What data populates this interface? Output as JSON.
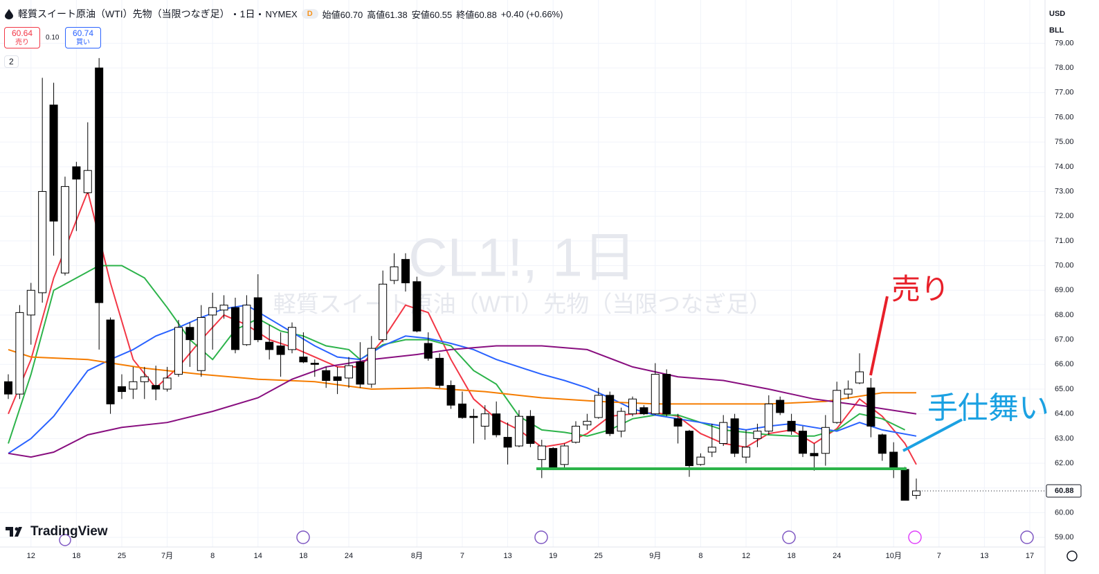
{
  "header": {
    "title": "軽質スイート原油（WTI）先物（当限つなぎ足）",
    "interval": "1日",
    "exchange": "NYMEX",
    "badge": "D",
    "ohlc": [
      "始値60.70",
      "高値61.38",
      "安値60.55",
      "終値60.88"
    ],
    "change": "+0.40 (+0.66%)"
  },
  "order_panel": {
    "sell_price": "60.64",
    "sell_label": "売り",
    "spread": "0.10",
    "buy_price": "60.74",
    "buy_label": "買い"
  },
  "indicator_count": "2",
  "currency": "USD",
  "unit": "BLL",
  "logo_text": "TradingView",
  "chart_data": {
    "type": "candlestick",
    "watermark_title": "CL1!, 1日",
    "watermark_subtitle": "軽質スイート原油（WTI）先物（当限つなぎ足）",
    "x": [
      0,
      1,
      2,
      3,
      4,
      5,
      6,
      7,
      8,
      9,
      10,
      11,
      12,
      13,
      14,
      15,
      16,
      17,
      18,
      19,
      20,
      21,
      22,
      23,
      24,
      25,
      26,
      27,
      28,
      29,
      30,
      31,
      32,
      33,
      34,
      35,
      36,
      37,
      38,
      39,
      40,
      41,
      42,
      43,
      44,
      45,
      46,
      47,
      48,
      49,
      50,
      51,
      52,
      53,
      54,
      55,
      56,
      57,
      58,
      59,
      60,
      61,
      62,
      63,
      64,
      65,
      66,
      67,
      68,
      69,
      70,
      71,
      72,
      73,
      74,
      75,
      76,
      77,
      78,
      79,
      80
    ],
    "open": [
      65.3,
      64.8,
      68.0,
      68.9,
      76.5,
      69.7,
      74.0,
      72.95,
      78.0,
      67.8,
      65.1,
      65.0,
      65.3,
      65.15,
      65.0,
      65.6,
      67.5,
      65.75,
      68.0,
      68.2,
      68.3,
      66.8,
      68.7,
      66.9,
      66.75,
      66.6,
      66.3,
      66.05,
      65.75,
      65.5,
      65.45,
      66.1,
      65.2,
      67.0,
      69.4,
      70.25,
      69.35,
      66.85,
      66.25,
      65.15,
      64.4,
      63.9,
      63.5,
      64.0,
      63.05,
      62.7,
      63.9,
      62.15,
      62.6,
      61.95,
      62.85,
      63.55,
      63.85,
      64.75,
      63.3,
      64.0,
      64.25,
      64.0,
      65.6,
      63.8,
      63.3,
      61.95,
      62.45,
      62.8,
      63.8,
      62.25,
      63.0,
      63.3,
      64.55,
      63.7,
      63.3,
      62.4,
      62.4,
      63.65,
      64.8,
      65.25,
      65.05,
      63.15,
      62.45,
      61.75,
      60.7
    ],
    "high": [
      65.6,
      68.4,
      69.3,
      77.6,
      77.4,
      73.6,
      74.2,
      75.8,
      78.4,
      67.9,
      65.6,
      65.9,
      65.9,
      65.95,
      65.9,
      67.8,
      67.7,
      68.4,
      68.9,
      68.8,
      68.7,
      68.8,
      69.65,
      67.6,
      67.3,
      67.7,
      67.3,
      66.2,
      65.9,
      65.9,
      66.3,
      66.9,
      67.15,
      69.8,
      70.5,
      70.5,
      69.55,
      67.3,
      66.45,
      65.35,
      64.9,
      64.2,
      64.35,
      64.5,
      63.65,
      64.15,
      64.15,
      62.95,
      62.65,
      62.8,
      63.7,
      64.0,
      65.05,
      64.9,
      64.25,
      64.7,
      64.35,
      66.05,
      65.8,
      64.0,
      63.35,
      62.4,
      63.6,
      63.95,
      64.0,
      63.35,
      63.6,
      64.75,
      64.7,
      64.0,
      63.5,
      62.8,
      63.95,
      65.3,
      65.35,
      66.45,
      65.45,
      63.2,
      62.85,
      61.85,
      61.38
    ],
    "low": [
      64.6,
      64.6,
      66.8,
      68.5,
      70.4,
      69.6,
      71.4,
      72.9,
      66.6,
      64.0,
      64.6,
      64.6,
      64.6,
      64.55,
      64.9,
      65.5,
      65.9,
      65.5,
      66.6,
      67.85,
      66.45,
      66.75,
      66.9,
      66.2,
      65.5,
      66.45,
      66.05,
      65.5,
      65.05,
      64.8,
      65.05,
      65.05,
      65.05,
      66.9,
      69.25,
      68.95,
      67.3,
      66.15,
      65.05,
      64.2,
      63.8,
      62.8,
      62.95,
      63.05,
      61.95,
      62.65,
      62.65,
      61.4,
      61.75,
      61.8,
      62.8,
      63.35,
      63.8,
      63.1,
      63.05,
      63.9,
      63.95,
      63.95,
      63.9,
      62.8,
      61.45,
      61.9,
      62.25,
      62.7,
      62.25,
      62.0,
      62.65,
      63.15,
      63.95,
      63.15,
      62.25,
      61.7,
      61.9,
      63.6,
      64.6,
      65.2,
      63.05,
      62.1,
      61.4,
      60.5,
      60.55
    ],
    "close": [
      64.8,
      68.1,
      69.0,
      73.0,
      71.8,
      73.2,
      73.5,
      73.85,
      68.5,
      64.4,
      64.9,
      65.3,
      65.5,
      65.0,
      65.45,
      67.5,
      67.0,
      67.9,
      68.3,
      68.4,
      66.6,
      68.4,
      67.0,
      66.6,
      66.4,
      67.5,
      66.1,
      66.0,
      65.35,
      65.35,
      65.95,
      65.2,
      66.65,
      69.25,
      69.95,
      69.3,
      67.35,
      66.25,
      65.15,
      64.35,
      63.85,
      63.85,
      64.0,
      63.15,
      62.65,
      63.9,
      62.8,
      62.7,
      61.8,
      62.7,
      63.5,
      63.7,
      64.75,
      63.2,
      64.1,
      64.6,
      64.0,
      65.6,
      64.0,
      63.5,
      61.9,
      62.25,
      62.65,
      63.65,
      62.4,
      62.65,
      63.3,
      64.4,
      64.05,
      63.3,
      62.4,
      62.3,
      63.45,
      64.95,
      65.0,
      65.7,
      63.5,
      62.4,
      61.8,
      60.5,
      60.88
    ],
    "up_color": "#ffffff",
    "down_color": "#000000",
    "xlim": [
      -0.73,
      91.34
    ],
    "xticks": [
      {
        "value": 2,
        "label": "12"
      },
      {
        "value": 6,
        "label": "18"
      },
      {
        "value": 10,
        "label": "25"
      },
      {
        "value": 14,
        "label": "7月"
      },
      {
        "value": 18,
        "label": "8"
      },
      {
        "value": 22,
        "label": "14"
      },
      {
        "value": 26,
        "label": "18"
      },
      {
        "value": 30,
        "label": "24"
      },
      {
        "value": 36,
        "label": "8月"
      },
      {
        "value": 40,
        "label": "7"
      },
      {
        "value": 44,
        "label": "13"
      },
      {
        "value": 48,
        "label": "19"
      },
      {
        "value": 52,
        "label": "25"
      },
      {
        "value": 57,
        "label": "9月"
      },
      {
        "value": 61,
        "label": "8"
      },
      {
        "value": 65,
        "label": "12"
      },
      {
        "value": 69,
        "label": "18"
      },
      {
        "value": 73,
        "label": "24"
      },
      {
        "value": 78,
        "label": "10月"
      },
      {
        "value": 82,
        "label": "7"
      },
      {
        "value": 86,
        "label": "13"
      },
      {
        "value": 90,
        "label": "17"
      }
    ],
    "ylim": [
      58.61,
      80.75
    ],
    "yticks": [
      {
        "value": 59,
        "label": "59.00"
      },
      {
        "value": 60,
        "label": "60.00"
      },
      {
        "value": 61,
        "label": "61.00"
      },
      {
        "value": 62,
        "label": "62.00"
      },
      {
        "value": 63,
        "label": "63.00"
      },
      {
        "value": 64,
        "label": "64.00"
      },
      {
        "value": 65,
        "label": "65.00"
      },
      {
        "value": 66,
        "label": "66.00"
      },
      {
        "value": 67,
        "label": "67.00"
      },
      {
        "value": 68,
        "label": "68.00"
      },
      {
        "value": 69,
        "label": "69.00"
      },
      {
        "value": 70,
        "label": "70.00"
      },
      {
        "value": 71,
        "label": "71.00"
      },
      {
        "value": 72,
        "label": "72.00"
      },
      {
        "value": 73,
        "label": "73.00"
      },
      {
        "value": 74,
        "label": "74.00"
      },
      {
        "value": 75,
        "label": "75.00"
      },
      {
        "value": 76,
        "label": "76.00"
      },
      {
        "value": 77,
        "label": "77.00"
      },
      {
        "value": 78,
        "label": "78.00"
      },
      {
        "value": 79,
        "label": "79.00"
      }
    ],
    "grid": true,
    "overlays": [
      {
        "color": "#f23645",
        "x": [
          0,
          2,
          4,
          7,
          9,
          11,
          13,
          15,
          17,
          19,
          21,
          23,
          25,
          27,
          29,
          31,
          33,
          35,
          37,
          39,
          41,
          43,
          45,
          47,
          49,
          51,
          53,
          55,
          57,
          59,
          61,
          63,
          65,
          67,
          69,
          71,
          73,
          75,
          77,
          79,
          80
        ],
        "values": [
          64.0,
          66.2,
          69.5,
          73.0,
          69.3,
          66.2,
          65.05,
          65.9,
          67.0,
          68.0,
          67.6,
          67.0,
          66.7,
          66.3,
          65.9,
          65.9,
          67.0,
          68.4,
          68.1,
          66.2,
          64.6,
          63.8,
          63.35,
          62.65,
          62.8,
          63.2,
          63.9,
          64.0,
          64.05,
          63.9,
          63.2,
          62.8,
          62.65,
          63.2,
          63.35,
          62.8,
          63.4,
          64.6,
          63.9,
          62.8,
          61.95
        ]
      },
      {
        "color": "#2cb34a",
        "x": [
          0,
          2,
          4,
          8,
          10,
          12,
          14,
          16,
          18,
          20,
          22,
          24,
          26,
          28,
          30,
          31,
          33,
          35,
          37,
          39,
          41,
          43,
          45,
          47,
          49,
          51,
          53,
          55,
          57,
          59,
          61,
          63,
          65,
          67,
          69,
          71,
          73,
          75,
          77,
          79
        ],
        "values": [
          62.8,
          65.6,
          69.0,
          70.0,
          70.0,
          69.5,
          68.3,
          67.0,
          66.2,
          67.4,
          67.85,
          67.35,
          67.15,
          66.75,
          66.6,
          66.2,
          66.8,
          67.0,
          67.0,
          66.75,
          65.75,
          65.2,
          63.9,
          63.35,
          63.25,
          63.1,
          63.35,
          63.8,
          63.95,
          63.95,
          63.65,
          63.35,
          63.25,
          63.15,
          63.1,
          63.1,
          63.35,
          64.0,
          63.8,
          63.35
        ]
      },
      {
        "color": "#2962ff",
        "x": [
          0,
          2,
          4,
          7,
          9,
          11,
          13,
          15,
          17,
          19,
          21,
          23,
          25,
          27,
          29,
          31,
          33,
          35,
          37,
          39,
          41,
          43,
          45,
          47,
          49,
          51,
          53,
          55,
          57,
          59,
          61,
          63,
          65,
          67,
          69,
          71,
          73,
          75,
          77,
          80
        ],
        "values": [
          62.4,
          63.0,
          63.9,
          65.75,
          66.2,
          66.6,
          67.15,
          67.5,
          67.9,
          68.25,
          68.4,
          67.85,
          67.3,
          66.75,
          66.3,
          66.2,
          66.75,
          67.15,
          67.05,
          66.85,
          66.6,
          66.2,
          65.9,
          65.6,
          65.35,
          65.05,
          64.65,
          64.2,
          63.95,
          63.8,
          63.65,
          63.5,
          63.35,
          63.5,
          63.6,
          63.45,
          63.3,
          63.65,
          63.35,
          63.1
        ]
      },
      {
        "color": "#f57c00",
        "x": [
          0,
          2,
          7,
          12,
          17,
          22,
          27,
          32,
          37,
          42,
          47,
          52,
          57,
          62,
          67,
          72,
          77,
          80
        ],
        "values": [
          66.6,
          66.3,
          66.2,
          65.85,
          65.6,
          65.4,
          65.3,
          65.0,
          65.05,
          64.9,
          64.65,
          64.5,
          64.4,
          64.4,
          64.4,
          64.5,
          64.85,
          64.85
        ]
      },
      {
        "color": "#880e7f",
        "x": [
          0,
          2,
          4,
          7,
          10,
          14,
          18,
          22,
          25,
          28,
          32,
          36,
          39,
          43,
          47,
          51,
          55,
          59,
          63,
          67,
          71,
          75,
          80
        ],
        "values": [
          62.4,
          62.25,
          62.45,
          63.15,
          63.45,
          63.65,
          64.1,
          64.65,
          65.4,
          65.9,
          66.2,
          66.4,
          66.6,
          66.75,
          66.75,
          66.6,
          65.9,
          65.5,
          65.35,
          65.0,
          64.6,
          64.35,
          64.0
        ]
      }
    ],
    "last_price": 60.88,
    "annotations": [
      {
        "text": "売り",
        "color": "#e8202a"
      },
      {
        "text": "手仕舞い",
        "color": "#1ba1e2"
      }
    ]
  }
}
